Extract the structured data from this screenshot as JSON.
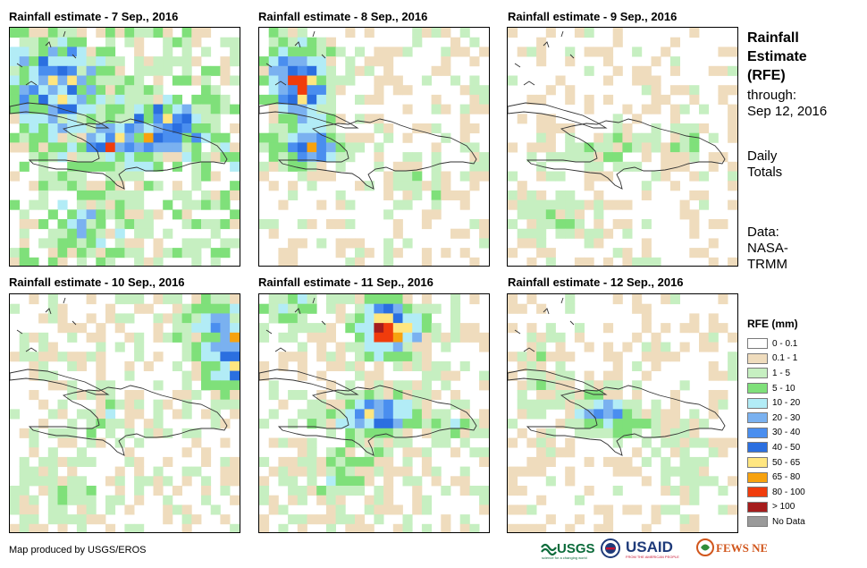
{
  "panels": [
    {
      "title": "Rainfall estimate - 7 Sep., 2016"
    },
    {
      "title": "Rainfall estimate - 8 Sep., 2016"
    },
    {
      "title": "Rainfall estimate - 9 Sep., 2016"
    },
    {
      "title": "Rainfall estimate - 10 Sep., 2016"
    },
    {
      "title": "Rainfall estimate - 11 Sep., 2016"
    },
    {
      "title": "Rainfall estimate - 12 Sep., 2016"
    }
  ],
  "side": {
    "title_lines": [
      "Rainfall",
      "Estimate",
      "(RFE)"
    ],
    "through_label": "through:",
    "through_date": "Sep 12, 2016",
    "totals_lines": [
      "Daily",
      "Totals"
    ],
    "data_lines": [
      "Data:",
      "NASA-",
      "TRMM"
    ]
  },
  "legend": {
    "title": "RFE (mm)",
    "items": [
      {
        "label": "0 - 0.1",
        "color": "#ffffff"
      },
      {
        "label": "0.1 - 1",
        "color": "#efdcbd"
      },
      {
        "label": "1 - 5",
        "color": "#c6efc1"
      },
      {
        "label": "5 - 10",
        "color": "#7fe07a"
      },
      {
        "label": "10 - 20",
        "color": "#b2ecf6"
      },
      {
        "label": "20 - 30",
        "color": "#7ab1f0"
      },
      {
        "label": "30 - 40",
        "color": "#4a8eef"
      },
      {
        "label": "40 - 50",
        "color": "#2b6fe0"
      },
      {
        "label": "50 - 65",
        "color": "#ffe680"
      },
      {
        "label": "65 - 80",
        "color": "#f7a20f"
      },
      {
        "label": "80 - 100",
        "color": "#f03c0c"
      },
      {
        "label": "> 100",
        "color": "#a51c1c"
      },
      {
        "label": "No Data",
        "color": "#9a9a9a"
      }
    ]
  },
  "credit": "Map produced by USGS/EROS",
  "logos": {
    "usgs": "USGS",
    "usgs_tagline": "science for a changing world",
    "usaid": "USAID",
    "usaid_tagline": "FROM THE AMERICAN PEOPLE",
    "fewsnet": "FEWS NET"
  }
}
